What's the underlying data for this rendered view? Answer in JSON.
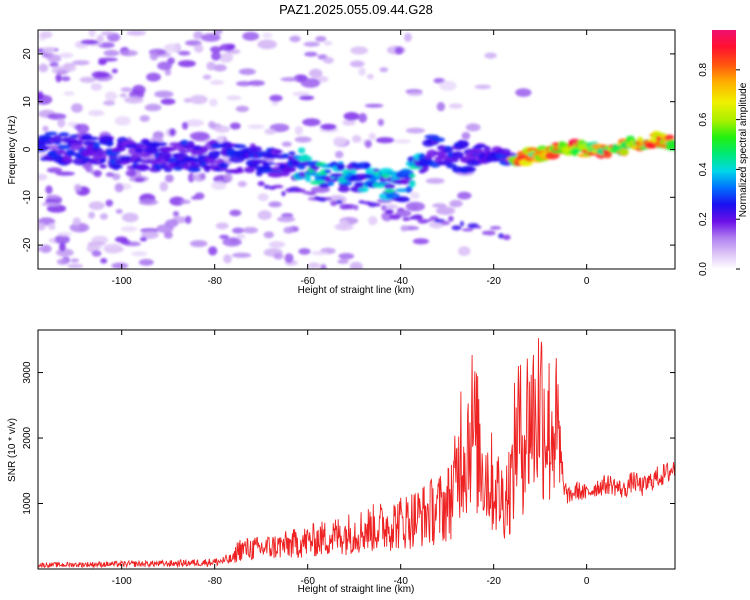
{
  "title": "PAZ1.2025.055.09.44.G28",
  "colors": {
    "snr_line": "#ee2222",
    "axis": "#000000",
    "background": "#ffffff"
  },
  "chart_data": [
    {
      "type": "heatmap",
      "xlabel": "Height of straight line (km)",
      "ylabel": "Frequency (Hz)",
      "xlim": [
        -118,
        19
      ],
      "ylim": [
        -25,
        25
      ],
      "xticks": [
        -100,
        -80,
        -60,
        -40,
        -20,
        0
      ],
      "yticks": [
        -20,
        -10,
        0,
        10,
        20
      ],
      "ridge": [
        {
          "x": -118,
          "y": 1
        },
        {
          "x": -100,
          "y": -1
        },
        {
          "x": -90,
          "y": -1.5
        },
        {
          "x": -80,
          "y": -1.5
        },
        {
          "x": -70,
          "y": -2
        },
        {
          "x": -62,
          "y": -3
        },
        {
          "x": -55,
          "y": -5
        },
        {
          "x": -48,
          "y": -6
        },
        {
          "x": -40,
          "y": -8
        },
        {
          "x": -34,
          "y": 0
        },
        {
          "x": -30,
          "y": -1.5
        },
        {
          "x": -25,
          "y": -1.5
        },
        {
          "x": -20,
          "y": -1
        },
        {
          "x": -15,
          "y": -2
        },
        {
          "x": -10,
          "y": -1
        },
        {
          "x": -5,
          "y": 0.5
        },
        {
          "x": 0,
          "y": 0
        },
        {
          "x": 5,
          "y": 0
        },
        {
          "x": 10,
          "y": 1
        },
        {
          "x": 15,
          "y": 2
        },
        {
          "x": 19,
          "y": 1
        }
      ],
      "colorbar": {
        "label": "Normalized spectral amplitude",
        "range": [
          0,
          0.96
        ],
        "ticks": [
          "0.0",
          "0.2",
          "0.4",
          "0.6",
          "0.8"
        ],
        "tick_values": [
          0,
          0.2,
          0.4,
          0.6,
          0.8
        ]
      }
    },
    {
      "type": "line",
      "xlabel": "Height of straight line (km)",
      "ylabel": "SNR (10 * v/v)",
      "xlim": [
        -118,
        19
      ],
      "ylim": [
        0,
        3650
      ],
      "xticks": [
        -100,
        -80,
        -60,
        -40,
        -20,
        0
      ],
      "yticks": [
        1000,
        2000,
        3000
      ],
      "series": [
        {
          "x": [
            -118,
            -110,
            -100,
            -90,
            -80,
            -76,
            -75,
            -70,
            -65,
            -60,
            -55,
            -50,
            -45,
            -40,
            -35,
            -30,
            -28,
            -27,
            -26,
            -25,
            -24,
            -22,
            -20,
            -18,
            -16,
            -15,
            -14,
            -13,
            -12,
            -11,
            -10,
            -9,
            -8,
            -7,
            -6,
            -5,
            -4,
            -2,
            0,
            2,
            5,
            8,
            10,
            12,
            15,
            17,
            19
          ],
          "y": [
            80,
            90,
            100,
            110,
            140,
            200,
            400,
            420,
            480,
            560,
            650,
            750,
            850,
            950,
            1100,
            1300,
            1800,
            2600,
            2300,
            3000,
            2700,
            2000,
            1700,
            1400,
            1800,
            3000,
            2600,
            2900,
            3200,
            3000,
            3550,
            3100,
            2800,
            3000,
            2500,
            1300,
            1100,
            1200,
            1150,
            1250,
            1300,
            1200,
            1350,
            1250,
            1400,
            1450,
            1550
          ]
        }
      ]
    }
  ]
}
